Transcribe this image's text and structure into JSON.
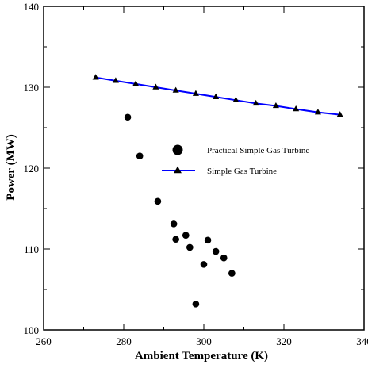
{
  "chart_data": {
    "type": "scatter",
    "xlabel": "Ambient Temperature (K)",
    "ylabel": "Power (MW)",
    "xlim": [
      260,
      340
    ],
    "ylim": [
      100,
      140
    ],
    "x_ticks": [
      260,
      280,
      300,
      320,
      340
    ],
    "y_ticks": [
      100,
      110,
      120,
      130,
      140
    ],
    "x_tick_labels": [
      "260",
      "280",
      "300",
      "320",
      "340"
    ],
    "y_tick_labels": [
      "100",
      "110",
      "120",
      "130",
      "140"
    ],
    "grid": false,
    "legend_position": "center-right",
    "series": [
      {
        "name": "Practical Simple Gas Turbine",
        "kind": "scatter",
        "marker": "circle",
        "color": "#000000",
        "points": [
          [
            281,
            126.3
          ],
          [
            284,
            121.5
          ],
          [
            288.5,
            115.9
          ],
          [
            292.5,
            113.1
          ],
          [
            293,
            111.2
          ],
          [
            295.5,
            111.7
          ],
          [
            296.5,
            110.2
          ],
          [
            298,
            103.2
          ],
          [
            300,
            108.1
          ],
          [
            301,
            111.1
          ],
          [
            303,
            109.7
          ],
          [
            305,
            108.9
          ],
          [
            307,
            107.0
          ]
        ]
      },
      {
        "name": "Simple Gas Turbine",
        "kind": "line",
        "marker": "triangle",
        "line_color": "#0000ff",
        "marker_color": "#000000",
        "points": [
          [
            273,
            131.2
          ],
          [
            278,
            130.8
          ],
          [
            283,
            130.4
          ],
          [
            288,
            130.0
          ],
          [
            293,
            129.6
          ],
          [
            298,
            129.2
          ],
          [
            303,
            128.8
          ],
          [
            308,
            128.4
          ],
          [
            313,
            128.0
          ],
          [
            318,
            127.7
          ],
          [
            323,
            127.3
          ],
          [
            328.5,
            126.9
          ],
          [
            334,
            126.6
          ]
        ]
      }
    ]
  }
}
